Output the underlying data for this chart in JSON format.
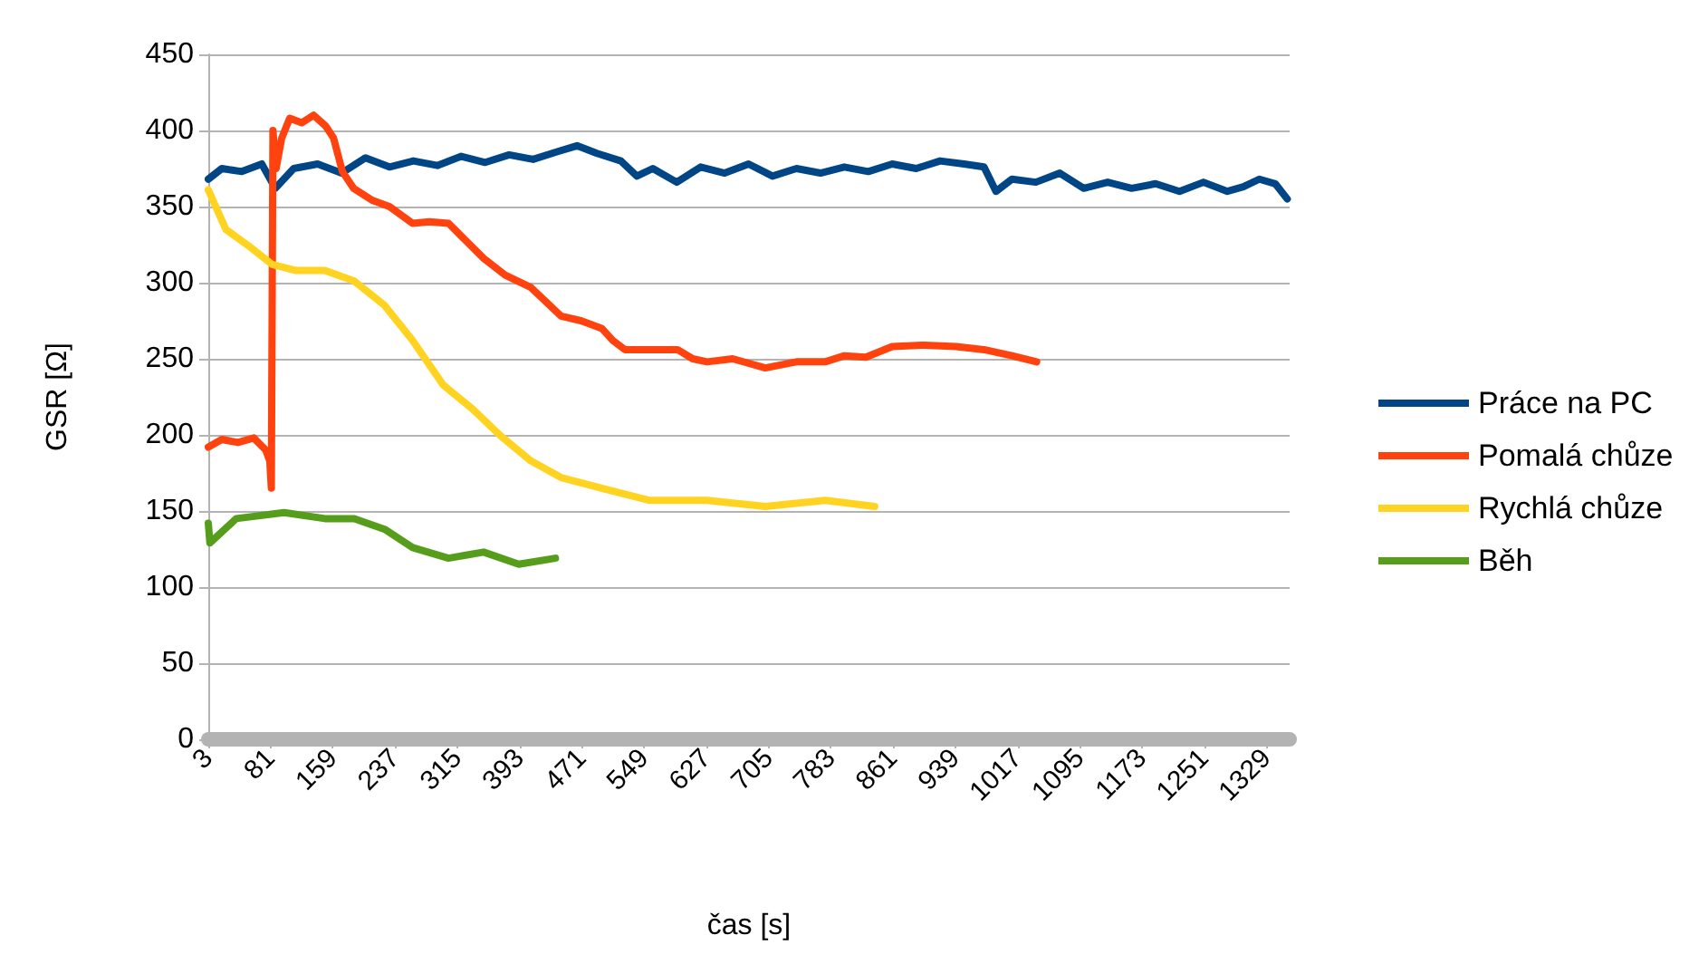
{
  "chart_data": {
    "type": "line",
    "xlabel": "čas [s]",
    "ylabel": "GSR [Ω]",
    "xlim": [
      3,
      1358
    ],
    "xticks": [
      3,
      81,
      159,
      237,
      315,
      393,
      471,
      549,
      627,
      705,
      783,
      861,
      939,
      1017,
      1095,
      1173,
      1251,
      1329
    ],
    "ylim": [
      0,
      450
    ],
    "yticks": [
      0,
      50,
      100,
      150,
      200,
      250,
      300,
      350,
      400,
      450
    ],
    "grid": "y",
    "legend": "right",
    "marker": "none",
    "line_style": "solid",
    "series": [
      {
        "name": "Práce na PC",
        "color": "#004586",
        "x": [
          3,
          20,
          45,
          70,
          87,
          110,
          140,
          170,
          200,
          230,
          260,
          290,
          320,
          350,
          380,
          410,
          440,
          465,
          490,
          520,
          540,
          560,
          590,
          620,
          650,
          680,
          710,
          740,
          770,
          800,
          830,
          860,
          890,
          920,
          950,
          975,
          990,
          1010,
          1040,
          1070,
          1100,
          1130,
          1160,
          1190,
          1220,
          1250,
          1280,
          1300,
          1320,
          1340,
          1355
        ],
        "values": [
          368,
          375,
          373,
          378,
          362,
          375,
          378,
          372,
          382,
          376,
          380,
          377,
          383,
          379,
          384,
          381,
          386,
          390,
          385,
          380,
          370,
          375,
          366,
          376,
          372,
          378,
          370,
          375,
          372,
          376,
          373,
          378,
          375,
          380,
          378,
          376,
          360,
          368,
          366,
          372,
          362,
          366,
          362,
          365,
          360,
          366,
          360,
          363,
          368,
          365,
          355
        ]
      },
      {
        "name": "Pomalá chůze",
        "color": "#ff420e",
        "x": [
          3,
          20,
          40,
          60,
          75,
          80,
          82,
          84,
          88,
          95,
          105,
          120,
          135,
          150,
          160,
          171,
          185,
          209,
          230,
          259,
          280,
          304,
          325,
          348,
          375,
          407,
          425,
          445,
          470,
          496,
          510,
          525,
          560,
          591,
          610,
          628,
          660,
          701,
          740,
          776,
          800,
          827,
          860,
          900,
          940,
          975,
          1010,
          1041
        ],
        "values": [
          192,
          197,
          195,
          198,
          190,
          183,
          165,
          400,
          375,
          395,
          408,
          405,
          410,
          403,
          395,
          373,
          362,
          354,
          350,
          339,
          340,
          339,
          328,
          316,
          305,
          297,
          288,
          278,
          275,
          270,
          262,
          256,
          256,
          256,
          250,
          248,
          250,
          244,
          248,
          248,
          252,
          251,
          258,
          259,
          258,
          256,
          252,
          248
        ]
      },
      {
        "name": "Rychlá chůze",
        "color": "#ffd320",
        "x": [
          3,
          25,
          54,
          83,
          113,
          149,
          186,
          224,
          259,
          297,
          334,
          370,
          407,
          445,
          496,
          555,
          628,
          701,
          776,
          838
        ],
        "values": [
          361,
          335,
          324,
          312,
          308,
          308,
          301,
          285,
          262,
          233,
          217,
          199,
          183,
          172,
          165,
          157,
          157,
          153,
          157,
          153
        ]
      },
      {
        "name": "Běh",
        "color": "#579d1c",
        "x": [
          3,
          5,
          38,
          98,
          149,
          186,
          224,
          259,
          304,
          348,
          392,
          438
        ],
        "values": [
          142,
          129,
          145,
          149,
          145,
          145,
          138,
          126,
          119,
          123,
          115,
          119
        ]
      }
    ]
  }
}
